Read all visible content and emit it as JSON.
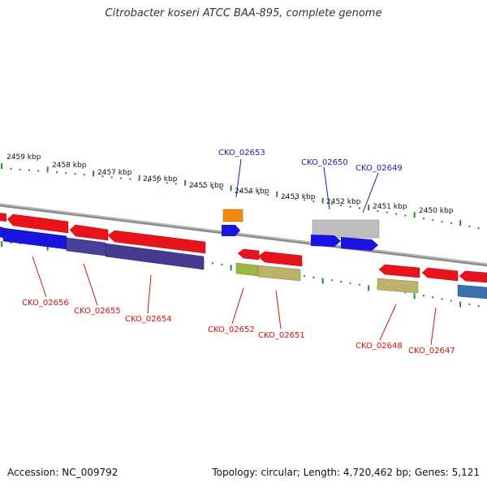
{
  "title": "Citrobacter koseri ATCC BAA-895, complete genome",
  "footer": {
    "accession": "Accession: NC_009792",
    "summary": "Topology: circular; Length: 4,720,462 bp; Genes: 5,121"
  },
  "colors": {
    "forward_gene": "#e8141c",
    "reverse_gene": "#1a14e0",
    "label_top": "#1a1aa8",
    "label_bottom": "#cc1111",
    "tick": "#2a8a2a",
    "backbone": "#8c8c8c"
  },
  "ruler": {
    "unit": "kbp",
    "labels": [
      "2459 kbp",
      "2458 kbp",
      "2457 kbp",
      "2456 kbp",
      "2455 kbp",
      "2454 kbp",
      "2453 kbp",
      "2452 kbp",
      "2451 kbp",
      "2450 kbp"
    ]
  },
  "gene_labels_top": [
    "CKO_02653",
    "CKO_02650",
    "CKO_02649"
  ],
  "gene_labels_bottom": [
    "CKO_02656",
    "CKO_02655",
    "CKO_02654",
    "CKO_02652",
    "CKO_02651",
    "CKO_02648",
    "CKO_02647"
  ]
}
